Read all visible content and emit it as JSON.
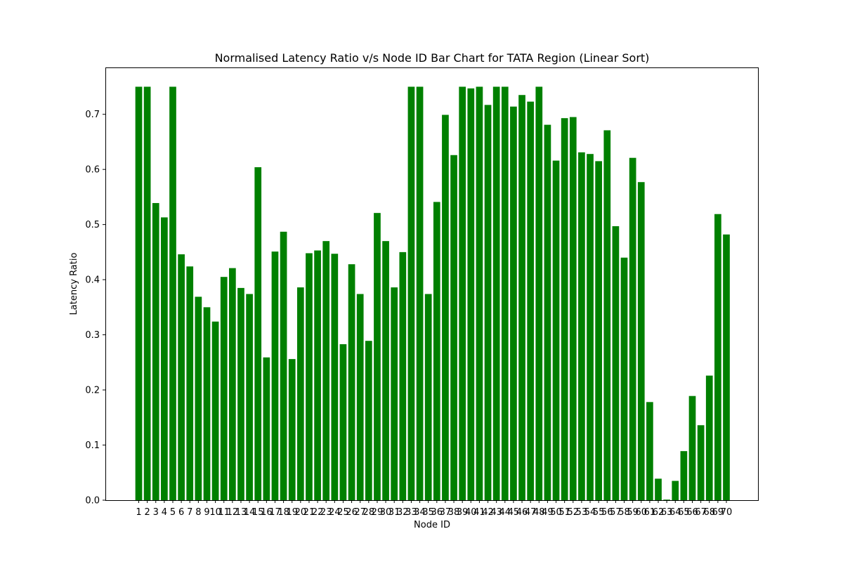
{
  "chart_data": {
    "type": "bar",
    "title": "Normalised Latency Ratio v/s Node ID Bar Chart for TATA Region (Linear Sort)",
    "xlabel": "Node ID",
    "ylabel": "Latency Ratio",
    "ylim": [
      0,
      0.785
    ],
    "yticks": [
      "0.0",
      "0.1",
      "0.2",
      "0.3",
      "0.4",
      "0.5",
      "0.6",
      "0.7"
    ],
    "grid": false,
    "legend": "none",
    "bar_color": "#008000",
    "categories": [
      "1",
      "2",
      "3",
      "4",
      "5",
      "6",
      "7",
      "8",
      "9",
      "10",
      "11",
      "12",
      "13",
      "14",
      "15",
      "16",
      "17",
      "18",
      "19",
      "20",
      "21",
      "22",
      "23",
      "24",
      "25",
      "26",
      "27",
      "28",
      "29",
      "30",
      "31",
      "32",
      "33",
      "34",
      "35",
      "36",
      "37",
      "38",
      "39",
      "40",
      "41",
      "42",
      "43",
      "44",
      "45",
      "46",
      "47",
      "48",
      "49",
      "50",
      "51",
      "52",
      "53",
      "54",
      "55",
      "56",
      "57",
      "58",
      "59",
      "60",
      "61",
      "62",
      "63",
      "64",
      "65",
      "66",
      "67",
      "68",
      "69",
      "70"
    ],
    "values": [
      0.75,
      0.75,
      0.539,
      0.513,
      0.75,
      0.446,
      0.424,
      0.369,
      0.35,
      0.324,
      0.405,
      0.421,
      0.385,
      0.374,
      0.604,
      0.259,
      0.451,
      0.487,
      0.256,
      0.386,
      0.448,
      0.453,
      0.47,
      0.447,
      0.283,
      0.428,
      0.374,
      0.289,
      0.521,
      0.47,
      0.386,
      0.45,
      0.75,
      0.75,
      0.374,
      0.541,
      0.699,
      0.626,
      0.75,
      0.747,
      0.75,
      0.717,
      0.75,
      0.75,
      0.714,
      0.735,
      0.723,
      0.75,
      0.681,
      0.616,
      0.693,
      0.695,
      0.631,
      0.628,
      0.615,
      0.671,
      0.497,
      0.44,
      0.621,
      0.577,
      0.178,
      0.039,
      0.001,
      0.035,
      0.089,
      0.189,
      0.136,
      0.226,
      0.519,
      0.482
    ]
  }
}
